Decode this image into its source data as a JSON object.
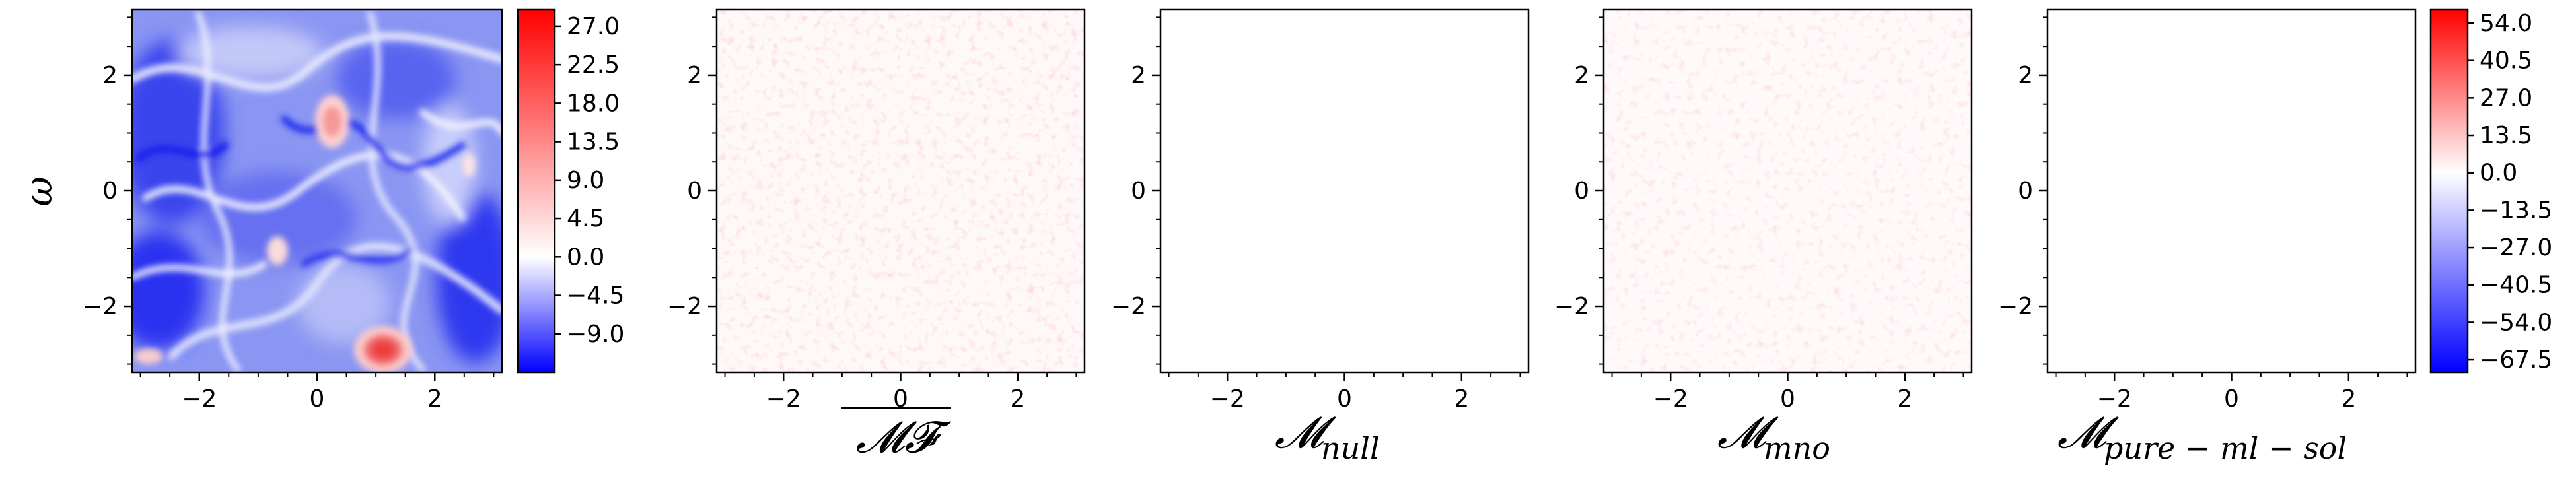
{
  "chart_data": [
    {
      "type": "heatmap",
      "title": "",
      "ylabel": "ω",
      "xlabel": "",
      "xlim": [
        -3.14159,
        3.14159
      ],
      "ylim": [
        -3.14159,
        3.14159
      ],
      "xticks": [
        -2,
        0,
        2
      ],
      "yticks": [
        -2,
        0,
        2
      ],
      "x_tick_labels": [
        "−2",
        "0",
        "2"
      ],
      "y_tick_labels": [
        "−2",
        "0",
        "2"
      ],
      "colormap": "bwr",
      "description_pattern": "turbulent vorticity field, mostly blue filaments with a few red vortices",
      "hotspots": [
        {
          "x": 0.75,
          "y": -2.7,
          "value": 27.0
        },
        {
          "x": 0.0,
          "y": 1.3,
          "value": 18.0
        },
        {
          "x": -0.5,
          "y": -1.1,
          "value": 13.5
        },
        {
          "x": -2.9,
          "y": -3.0,
          "value": 13.5
        },
        {
          "x": 2.5,
          "y": -0.3,
          "value": 9.0
        }
      ],
      "colorbar": {
        "min": -13.5,
        "max": 29.0,
        "ticks": [
          27.0,
          22.5,
          18.0,
          13.5,
          9.0,
          4.5,
          0.0,
          -4.5,
          -9.0
        ],
        "tick_labels": [
          "27.0",
          "22.5",
          "18.0",
          "13.5",
          "9.0",
          "4.5",
          "0.0",
          "−4.5",
          "−9.0"
        ]
      }
    },
    {
      "type": "heatmap",
      "xlabel": "MF-bar",
      "xlabel_main": "𝓜𝓕",
      "xlabel_overline": true,
      "xlim": [
        -3.14159,
        3.14159
      ],
      "ylim": [
        -3.14159,
        3.14159
      ],
      "xticks": [
        -2,
        0,
        2
      ],
      "yticks": [
        -2,
        0,
        2
      ],
      "x_tick_labels": [
        "−2",
        "0",
        "2"
      ],
      "y_tick_labels": [
        "−2",
        "0",
        "2"
      ],
      "pattern": "faint pink noise, near zero",
      "intensity": 0.22
    },
    {
      "type": "heatmap",
      "xlabel_main": "𝓜",
      "xlabel_sub": "null",
      "xlim": [
        -3.14159,
        3.14159
      ],
      "ylim": [
        -3.14159,
        3.14159
      ],
      "xticks": [
        -2,
        0,
        2
      ],
      "yticks": [
        -2,
        0,
        2
      ],
      "x_tick_labels": [
        "−2",
        "0",
        "2"
      ],
      "y_tick_labels": [
        "−2",
        "0",
        "2"
      ],
      "pattern": "blank (all zero)",
      "intensity": 0.0
    },
    {
      "type": "heatmap",
      "xlabel_main": "𝓜",
      "xlabel_sub": "mno",
      "xlim": [
        -3.14159,
        3.14159
      ],
      "ylim": [
        -3.14159,
        3.14159
      ],
      "xticks": [
        -2,
        0,
        2
      ],
      "yticks": [
        -2,
        0,
        2
      ],
      "x_tick_labels": [
        "−2",
        "0",
        "2"
      ],
      "y_tick_labels": [
        "−2",
        "0",
        "2"
      ],
      "pattern": "faint pink noise, near zero",
      "intensity": 0.2
    },
    {
      "type": "heatmap",
      "xlabel_main": "𝓜",
      "xlabel_sub": "pure − ml − sol",
      "xlim": [
        -3.14159,
        3.14159
      ],
      "ylim": [
        -3.14159,
        3.14159
      ],
      "xticks": [
        -2,
        0,
        2
      ],
      "yticks": [
        -2,
        0,
        2
      ],
      "x_tick_labels": [
        "−2",
        "0",
        "2"
      ],
      "y_tick_labels": [
        "−2",
        "0",
        "2"
      ],
      "pattern": "blank (all zero)",
      "intensity": 0.0,
      "colorbar": {
        "min": -72.0,
        "max": 59.0,
        "ticks": [
          54.0,
          40.5,
          27.0,
          13.5,
          0.0,
          -13.5,
          -27.0,
          -40.5,
          -54.0,
          -67.5
        ],
        "tick_labels": [
          "54.0",
          "40.5",
          "27.0",
          "13.5",
          "0.0",
          "−13.5",
          "−27.0",
          "−40.5",
          "−54.0",
          "−67.5"
        ]
      }
    }
  ]
}
